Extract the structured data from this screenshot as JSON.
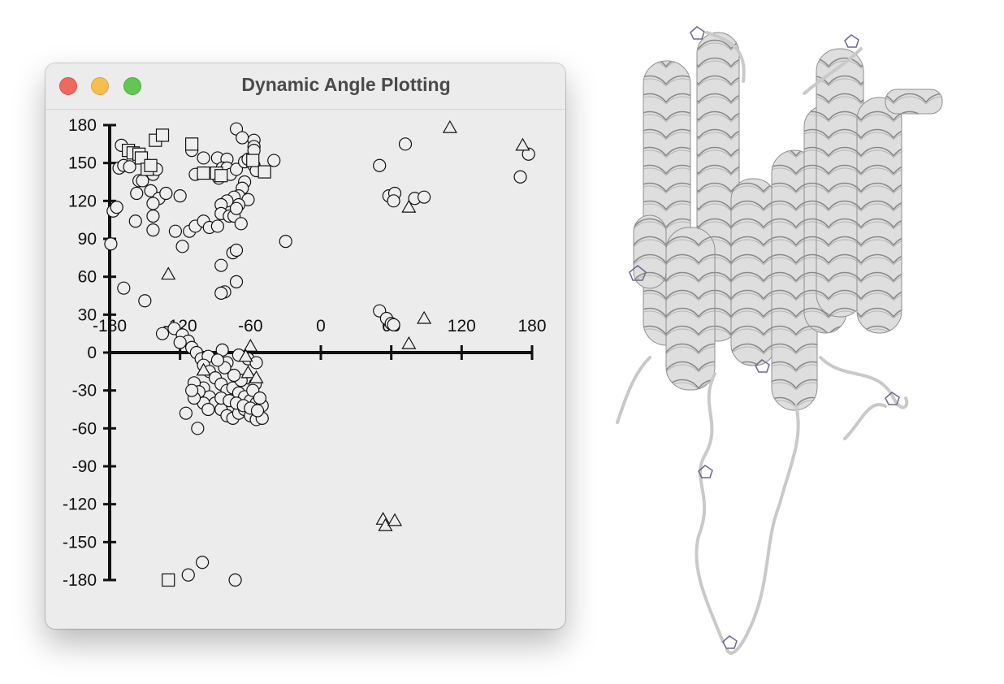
{
  "window": {
    "title": "Dynamic Angle Plotting"
  },
  "colors": {
    "window_bg": "#ececec",
    "marker_fill": "#eeeeee",
    "axis": "#111111",
    "close": "#ee6a5e",
    "minimize": "#f5bf4f",
    "maximize": "#62c554",
    "ribbon": "#dcdcdc"
  },
  "chart_data": {
    "type": "scatter",
    "xlim": [
      -180,
      180
    ],
    "ylim": [
      -180,
      180
    ],
    "xticks": [
      "-180",
      "-120",
      "-60",
      "0",
      "60",
      "120",
      "180"
    ],
    "yticks": [
      "180",
      "150",
      "120",
      "90",
      "60",
      "30",
      "0",
      "-30",
      "-60",
      "-90",
      "-120",
      "-150",
      "-180"
    ],
    "grid": false,
    "legend": "none",
    "series": [
      {
        "marker": "circle",
        "points": [
          [
            -170,
            164
          ],
          [
            -172,
            146
          ],
          [
            -168,
            148
          ],
          [
            -163,
            147
          ],
          [
            -177,
            112
          ],
          [
            -174,
            115
          ],
          [
            -179,
            86
          ],
          [
            -168,
            51
          ],
          [
            -150,
            41
          ],
          [
            -158,
            104
          ],
          [
            -157,
            126
          ],
          [
            -155,
            136
          ],
          [
            -152,
            136
          ],
          [
            -143,
            141
          ],
          [
            -140,
            145
          ],
          [
            -145,
            128
          ],
          [
            -138,
            122
          ],
          [
            -132,
            126
          ],
          [
            -143,
            118
          ],
          [
            -143,
            108
          ],
          [
            -143,
            97
          ],
          [
            -124,
            96
          ],
          [
            -112,
            96
          ],
          [
            -107,
            100
          ],
          [
            -100,
            104
          ],
          [
            -95,
            99
          ],
          [
            -120,
            124
          ],
          [
            -118,
            84
          ],
          [
            -107,
            141
          ],
          [
            -110,
            160
          ],
          [
            -100,
            154
          ],
          [
            -88,
            154
          ],
          [
            -80,
            153
          ],
          [
            -84,
            146
          ],
          [
            -80,
            146
          ],
          [
            -87,
            138
          ],
          [
            -77,
            141
          ],
          [
            -72,
            145
          ],
          [
            -65,
            151
          ],
          [
            -62,
            153
          ],
          [
            -72,
            177
          ],
          [
            -67,
            170
          ],
          [
            -57,
            168
          ],
          [
            -57,
            163
          ],
          [
            -57,
            160
          ],
          [
            -57,
            148
          ],
          [
            -55,
            144
          ],
          [
            -65,
            135
          ],
          [
            -67,
            130
          ],
          [
            -70,
            124
          ],
          [
            -74,
            123
          ],
          [
            -62,
            121
          ],
          [
            -80,
            120
          ],
          [
            -85,
            117
          ],
          [
            -70,
            117
          ],
          [
            -85,
            110
          ],
          [
            -78,
            108
          ],
          [
            -74,
            108
          ],
          [
            -72,
            114
          ],
          [
            -68,
            102
          ],
          [
            -88,
            100
          ],
          [
            -75,
            79
          ],
          [
            -72,
            81
          ],
          [
            -85,
            69
          ],
          [
            -82,
            48
          ],
          [
            -85,
            47
          ],
          [
            -72,
            56
          ],
          [
            -40,
            152
          ],
          [
            -30,
            88
          ],
          [
            50,
            148
          ],
          [
            72,
            165
          ],
          [
            58,
            124
          ],
          [
            63,
            126
          ],
          [
            62,
            120
          ],
          [
            80,
            122
          ],
          [
            88,
            123
          ],
          [
            170,
            139
          ],
          [
            177,
            157
          ],
          [
            50,
            33
          ],
          [
            56,
            27
          ],
          [
            60,
            23
          ],
          [
            62,
            22
          ],
          [
            -135,
            15
          ],
          [
            -125,
            19
          ],
          [
            -118,
            14
          ],
          [
            -113,
            9
          ],
          [
            -120,
            8
          ],
          [
            -110,
            4
          ],
          [
            -106,
            0
          ],
          [
            -102,
            -5
          ],
          [
            -96,
            -3
          ],
          [
            -84,
            2
          ],
          [
            -80,
            -8
          ],
          [
            -70,
            -2
          ],
          [
            -62,
            -5
          ],
          [
            -55,
            -8
          ],
          [
            -100,
            -10
          ],
          [
            -95,
            -15
          ],
          [
            -90,
            -20
          ],
          [
            -85,
            -25
          ],
          [
            -80,
            -30
          ],
          [
            -75,
            -28
          ],
          [
            -70,
            -32
          ],
          [
            -65,
            -35
          ],
          [
            -60,
            -38
          ],
          [
            -55,
            -40
          ],
          [
            -50,
            -42
          ],
          [
            -100,
            -28
          ],
          [
            -95,
            -35
          ],
          [
            -90,
            -40
          ],
          [
            -85,
            -45
          ],
          [
            -80,
            -50
          ],
          [
            -75,
            -52
          ],
          [
            -70,
            -48
          ],
          [
            -65,
            -45
          ],
          [
            -60,
            -50
          ],
          [
            -55,
            -53
          ],
          [
            -50,
            -52
          ],
          [
            -108,
            -24
          ],
          [
            -104,
            -31
          ],
          [
            -100,
            -40
          ],
          [
            -96,
            -45
          ],
          [
            -108,
            -36
          ],
          [
            -110,
            -30
          ],
          [
            -115,
            -48
          ],
          [
            -105,
            -60
          ],
          [
            -85,
            -36
          ],
          [
            -78,
            -38
          ],
          [
            -72,
            -40
          ],
          [
            -66,
            -42
          ],
          [
            -60,
            -44
          ],
          [
            -54,
            -46
          ],
          [
            -62,
            -20
          ],
          [
            -56,
            -25
          ],
          [
            -68,
            -22
          ],
          [
            -82,
            -12
          ],
          [
            -88,
            -6
          ],
          [
            -58,
            -30
          ],
          [
            -52,
            -36
          ],
          [
            -74,
            -18
          ],
          [
            -113,
            -176
          ],
          [
            -101,
            -166
          ],
          [
            -73,
            -180
          ]
        ]
      },
      {
        "marker": "square",
        "points": [
          [
            -164,
            160
          ],
          [
            -160,
            158
          ],
          [
            -155,
            157
          ],
          [
            -153,
            154
          ],
          [
            -148,
            145
          ],
          [
            -145,
            148
          ],
          [
            -141,
            168
          ],
          [
            -135,
            172
          ],
          [
            -110,
            165
          ],
          [
            -100,
            142
          ],
          [
            -89,
            142
          ],
          [
            -85,
            140
          ],
          [
            -58,
            152
          ],
          [
            -48,
            143
          ],
          [
            -130,
            -180
          ]
        ]
      },
      {
        "marker": "triangle",
        "points": [
          [
            -130,
            62
          ],
          [
            -100,
            -14
          ],
          [
            -60,
            5
          ],
          [
            -62,
            -16
          ],
          [
            -55,
            -20
          ],
          [
            -64,
            -3
          ],
          [
            75,
            115
          ],
          [
            110,
            178
          ],
          [
            172,
            164
          ],
          [
            88,
            27
          ],
          [
            75,
            7
          ],
          [
            53,
            -132
          ],
          [
            55,
            -137
          ],
          [
            63,
            -133
          ]
        ]
      }
    ]
  }
}
